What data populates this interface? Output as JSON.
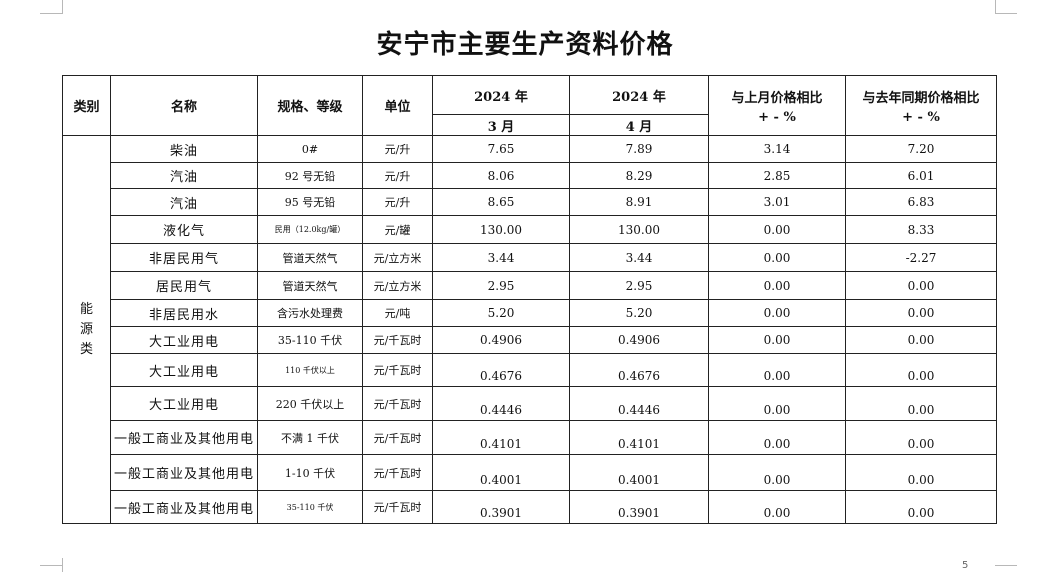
{
  "title": "安宁市主要生产资料价格",
  "headers": {
    "category": "类别",
    "name": "名称",
    "spec": "规格、等级",
    "unit": "单位",
    "year_col1": "2024 年",
    "month_col1": "3 月",
    "year_col2": "2024 年",
    "month_col2": "4 月",
    "mom_line1": "与上月价格相比",
    "mom_line2": "+ - %",
    "yoy_line1": "与去年同期价格相比",
    "yoy_line2": "+ - %"
  },
  "category": [
    "能",
    "源",
    "类"
  ],
  "rows": [
    {
      "name": "柴油",
      "spec": "0#",
      "unit": "元/升",
      "mar": "7.65",
      "apr": "7.89",
      "mom": "3.14",
      "yoy": "7.20"
    },
    {
      "name": "汽油",
      "spec": "92 号无铅",
      "unit": "元/升",
      "mar": "8.06",
      "apr": "8.29",
      "mom": "2.85",
      "yoy": "6.01"
    },
    {
      "name": "汽油",
      "spec": "95 号无铅",
      "unit": "元/升",
      "mar": "8.65",
      "apr": "8.91",
      "mom": "3.01",
      "yoy": "6.83"
    },
    {
      "name": "液化气",
      "spec": "民用（12.0kg/罐）",
      "unit": "元/罐",
      "mar": "130.00",
      "apr": "130.00",
      "mom": "0.00",
      "yoy": "8.33"
    },
    {
      "name": "非居民用气",
      "spec": "管道天然气",
      "unit": "元/立方米",
      "mar": "3.44",
      "apr": "3.44",
      "mom": "0.00",
      "yoy": "-2.27"
    },
    {
      "name": "居民用气",
      "spec": "管道天然气",
      "unit": "元/立方米",
      "mar": "2.95",
      "apr": "2.95",
      "mom": "0.00",
      "yoy": "0.00"
    },
    {
      "name": "非居民用水",
      "spec": "含污水处理费",
      "unit": "元/吨",
      "mar": "5.20",
      "apr": "5.20",
      "mom": "0.00",
      "yoy": "0.00"
    },
    {
      "name": "大工业用电",
      "spec": "35-110 千伏",
      "unit": "元/千瓦时",
      "mar": "0.4906",
      "apr": "0.4906",
      "mom": "0.00",
      "yoy": "0.00"
    },
    {
      "name": "大工业用电",
      "spec": "110 千伏以上",
      "unit": "元/千瓦时",
      "mar": "0.4676",
      "apr": "0.4676",
      "mom": "0.00",
      "yoy": "0.00"
    },
    {
      "name": "大工业用电",
      "spec": "220 千伏以上",
      "unit": "元/千瓦时",
      "mar": "0.4446",
      "apr": "0.4446",
      "mom": "0.00",
      "yoy": "0.00"
    },
    {
      "name": "一般工商业及其他用电",
      "spec": "不满 1 千伏",
      "unit": "元/千瓦时",
      "mar": "0.4101",
      "apr": "0.4101",
      "mom": "0.00",
      "yoy": "0.00"
    },
    {
      "name": "一般工商业及其他用电",
      "spec": "1-10 千伏",
      "unit": "元/千瓦时",
      "mar": "0.4001",
      "apr": "0.4001",
      "mom": "0.00",
      "yoy": "0.00"
    },
    {
      "name": "一般工商业及其他用电",
      "spec": "35-110 千伏",
      "unit": "元/千瓦时",
      "mar": "0.3901",
      "apr": "0.3901",
      "mom": "0.00",
      "yoy": "0.00"
    }
  ],
  "page_number": "5"
}
